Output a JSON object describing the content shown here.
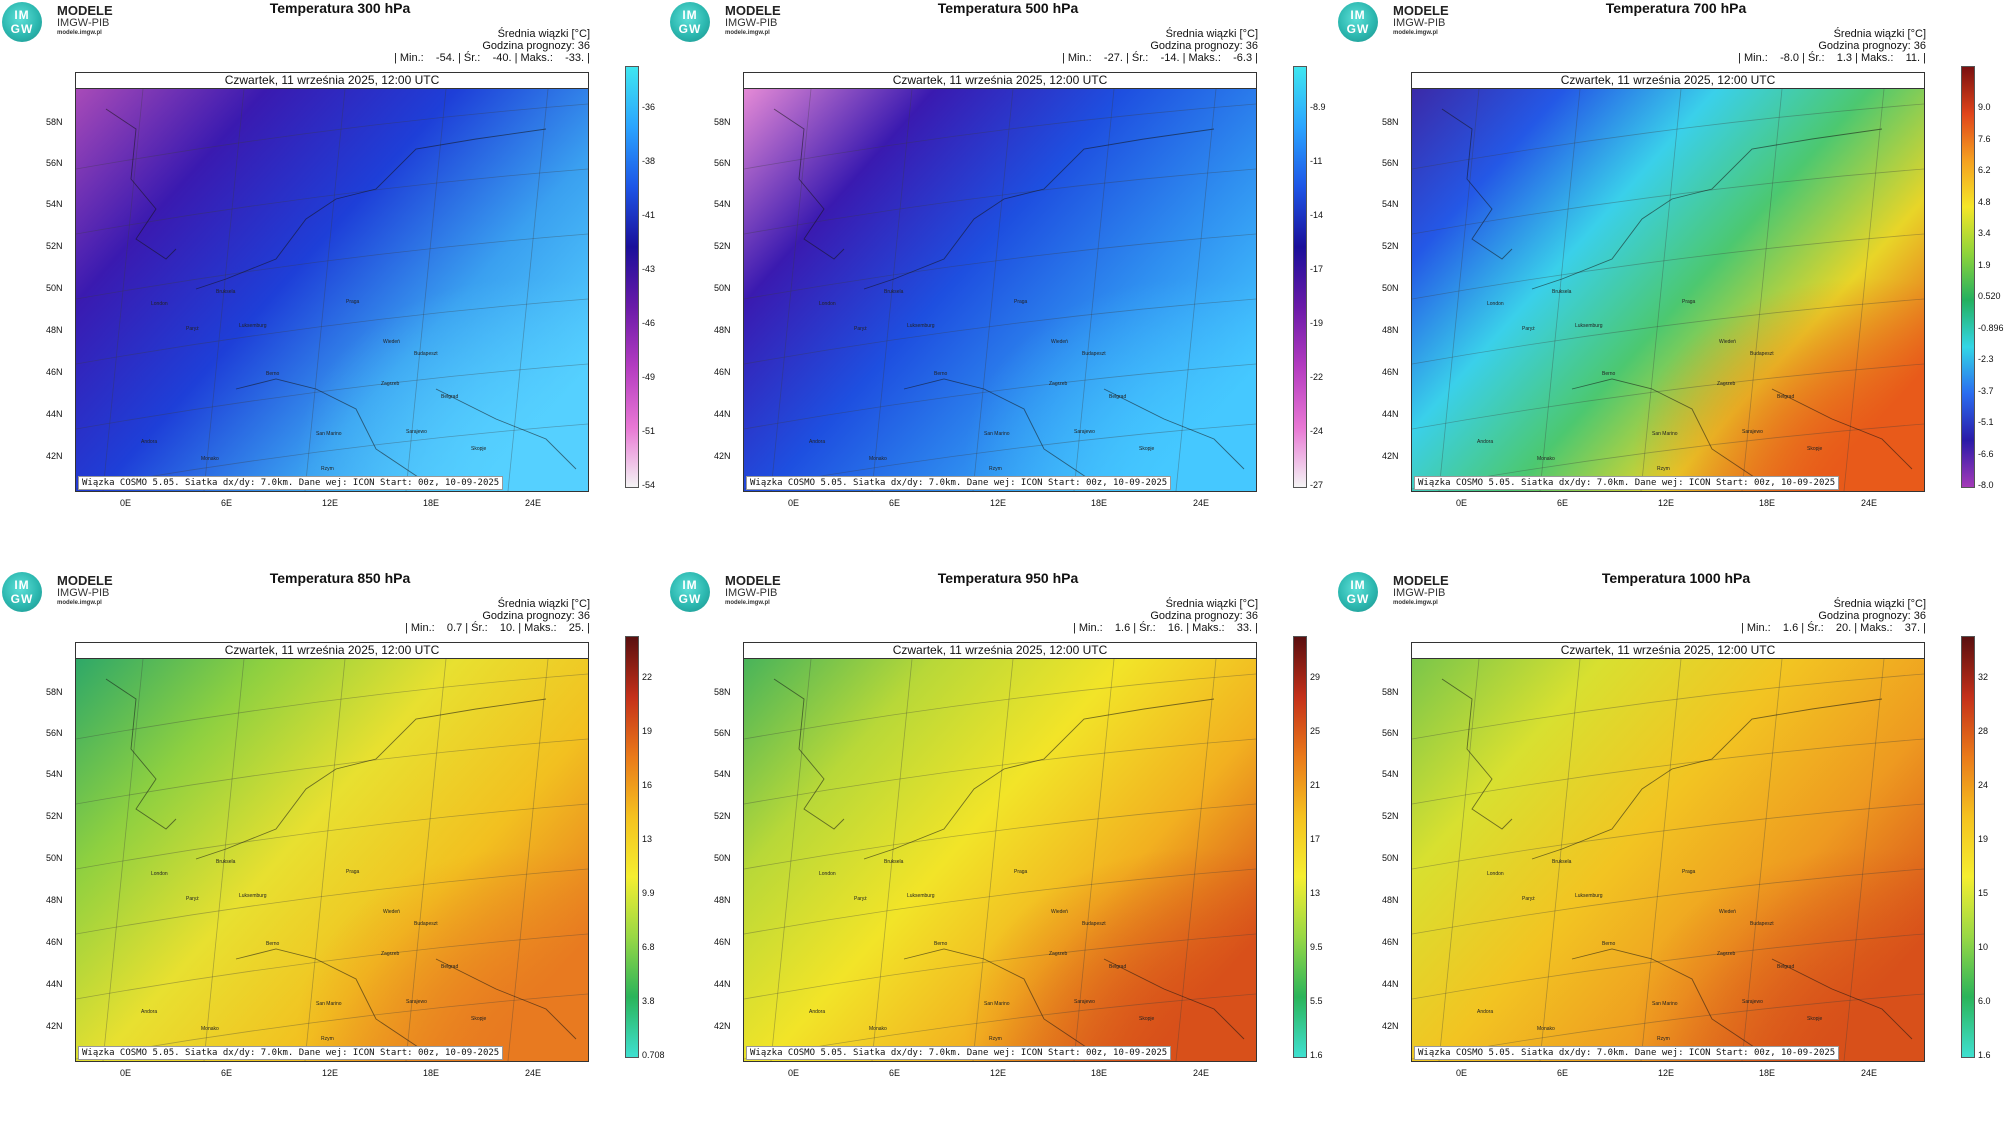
{
  "common": {
    "logo_title": "MODELE",
    "logo_subtitle": "IMGW-PIB",
    "logo_url": "modele.imgw.pl",
    "logo_mark_top": "IM",
    "logo_mark_bottom": "GW",
    "info_line1": "Średnia wiązki [°C]",
    "info_line2": "Godzina prognozy: 36",
    "date_label": "Czwartek, 11 września 2025, 12:00 UTC",
    "footer": "Wiązka COSMO 5.05. Siatka dx/dy: 7.0km. Dane wej: ICON Start: 00z, 10-09-2025",
    "lat_labels": [
      "58N",
      "56N",
      "54N",
      "52N",
      "50N",
      "48N",
      "46N",
      "44N",
      "42N"
    ],
    "lon_labels": [
      "0E",
      "6E",
      "12E",
      "18E",
      "24E"
    ]
  },
  "panels": [
    {
      "title": "Temperatura 300 hPa",
      "stats": "| Min.:    -54. | Śr.:    -40. | Maks.:    -33. |",
      "colorbar_ticks": [
        "-36",
        "-38",
        "-41",
        "-43",
        "-46",
        "-49",
        "-51",
        "-54"
      ],
      "colorbar_colors": [
        "#3fe6f0",
        "#2aa4ff",
        "#1d55e6",
        "#1a0f9a",
        "#6a1aa8",
        "#b43cc0",
        "#e877d4",
        "#f4f4f4"
      ],
      "map_gradient": [
        "#a84bb8",
        "#3a1ab0",
        "#1e3fd8",
        "#3aa0f0",
        "#55d0ff"
      ]
    },
    {
      "title": "Temperatura 500 hPa",
      "stats": "| Min.:    -27. | Śr.:    -14. | Maks.:    -6.3 |",
      "colorbar_ticks": [
        "-8.9",
        "-11",
        "-14",
        "-17",
        "-19",
        "-22",
        "-24",
        "-27"
      ],
      "colorbar_colors": [
        "#3fe6f0",
        "#2aa4ff",
        "#1d55e6",
        "#1a0f9a",
        "#6a1aa8",
        "#b43cc0",
        "#e877d4",
        "#f4f4f4"
      ],
      "map_gradient": [
        "#e58ad6",
        "#3a1ab0",
        "#1e4fe0",
        "#2f8ff0",
        "#45c8ff"
      ]
    },
    {
      "title": "Temperatura 700 hPa",
      "stats": "| Min.:    -8.0 | Śr.:    1.3 | Maks.:    11. |",
      "colorbar_ticks": [
        "9.0",
        "7.6",
        "6.2",
        "4.8",
        "3.4",
        "1.9",
        "0.520",
        "-0.896",
        "-2.3",
        "-3.7",
        "-5.1",
        "-6.6",
        "-8.0"
      ],
      "colorbar_colors": [
        "#7a1010",
        "#e0441b",
        "#f5a020",
        "#f5e628",
        "#8ed43a",
        "#23b060",
        "#33d6e6",
        "#2a6cf0",
        "#2a1aa8",
        "#a43ab8"
      ],
      "map_gradient": [
        "#3b2aa8",
        "#2458e6",
        "#3ad0ea",
        "#4cc870",
        "#e8d528",
        "#e85a1a"
      ]
    },
    {
      "title": "Temperatura 850 hPa",
      "stats": "| Min.:    0.7 | Śr.:    10. | Maks.:    25. |",
      "colorbar_ticks": [
        "22",
        "19",
        "16",
        "13",
        "9.9",
        "6.8",
        "3.8",
        "0.708"
      ],
      "colorbar_colors": [
        "#5a0f0f",
        "#c4301a",
        "#ea7a1a",
        "#f5c21f",
        "#f5ee30",
        "#98d845",
        "#2ab45a",
        "#3fe0d0"
      ],
      "map_gradient": [
        "#2ea868",
        "#8ed040",
        "#e8e030",
        "#f2c020",
        "#e87a20"
      ]
    },
    {
      "title": "Temperatura 950 hPa",
      "stats": "| Min.:    1.6 | Śr.:    16. | Maks.:    33. |",
      "colorbar_ticks": [
        "29",
        "25",
        "21",
        "17",
        "13",
        "9.5",
        "5.5",
        "1.6"
      ],
      "colorbar_colors": [
        "#5a0f0f",
        "#c4301a",
        "#ea7a1a",
        "#f5c21f",
        "#f5ee30",
        "#98d845",
        "#2ab45a",
        "#3fe0d0"
      ],
      "map_gradient": [
        "#48b45a",
        "#b8d838",
        "#f2e428",
        "#f2b020",
        "#d8501a"
      ]
    },
    {
      "title": "Temperatura 1000 hPa",
      "stats": "| Min.:    1.6 | Śr.:    20. | Maks.:    37. |",
      "colorbar_ticks": [
        "32",
        "28",
        "24",
        "19",
        "15",
        "10",
        "6.0",
        "1.6"
      ],
      "colorbar_colors": [
        "#5a0f0f",
        "#c4301a",
        "#ea7a1a",
        "#f5c21f",
        "#f5ee30",
        "#98d845",
        "#2ab45a",
        "#3fe0d0"
      ],
      "map_gradient": [
        "#7ac64a",
        "#d8e030",
        "#f2c422",
        "#ee9a20",
        "#d8501a"
      ]
    }
  ],
  "cities": [
    "London",
    "Bruksela",
    "Paryż",
    "Luksemburg",
    "Praga",
    "Wiedeń",
    "Budapeszt",
    "Berno",
    "Zagrzeb",
    "Belgrad",
    "San Marino",
    "Sarajewo",
    "Skopje",
    "Andora",
    "Monako",
    "Rzym"
  ]
}
